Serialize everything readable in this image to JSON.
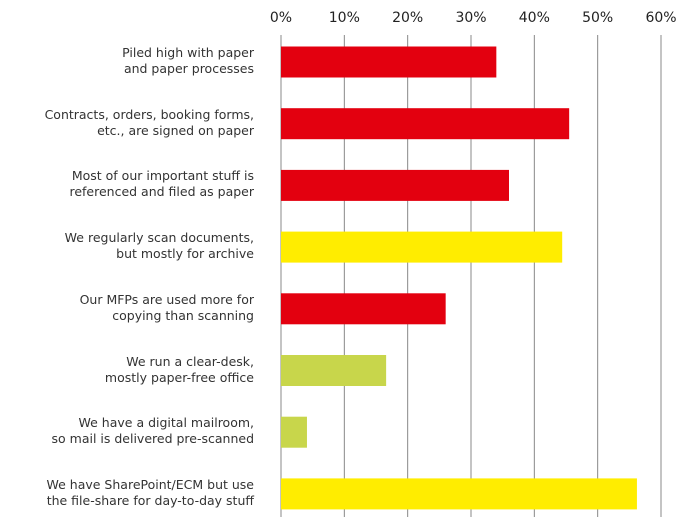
{
  "chart_data": {
    "type": "bar",
    "orientation": "horizontal",
    "categories": [
      "Piled high with paper\nand paper processes",
      "Contracts, orders, booking forms,\netc., are signed on paper",
      "Most of our important stuff is\nreferenced and filed as paper",
      "We regularly scan documents,\nbut mostly for archive",
      "Our MFPs are used more for\ncopying than scanning",
      "We run a clear-desk,\nmostly paper-free office",
      "We have a digital mailroom,\nso mail is delivered pre-scanned",
      "We have SharePoint/ECM but use\nthe file-share for day-to-day stuff"
    ],
    "values": [
      34,
      45.5,
      36,
      44.4,
      26,
      16.6,
      4.1,
      56.2
    ],
    "colors": [
      "#e3000f",
      "#e3000f",
      "#e3000f",
      "#ffed00",
      "#e3000f",
      "#c8d64b",
      "#c8d64b",
      "#ffed00"
    ],
    "xlim": [
      0,
      60
    ],
    "xticks": [
      {
        "value": 0,
        "label": "0%"
      },
      {
        "value": 10,
        "label": "10%"
      },
      {
        "value": 20,
        "label": "20%"
      },
      {
        "value": 30,
        "label": "30%"
      },
      {
        "value": 40,
        "label": "40%"
      },
      {
        "value": 50,
        "label": "50%"
      },
      {
        "value": 60,
        "label": "60%"
      }
    ],
    "grid": true,
    "tick_position": "top"
  }
}
